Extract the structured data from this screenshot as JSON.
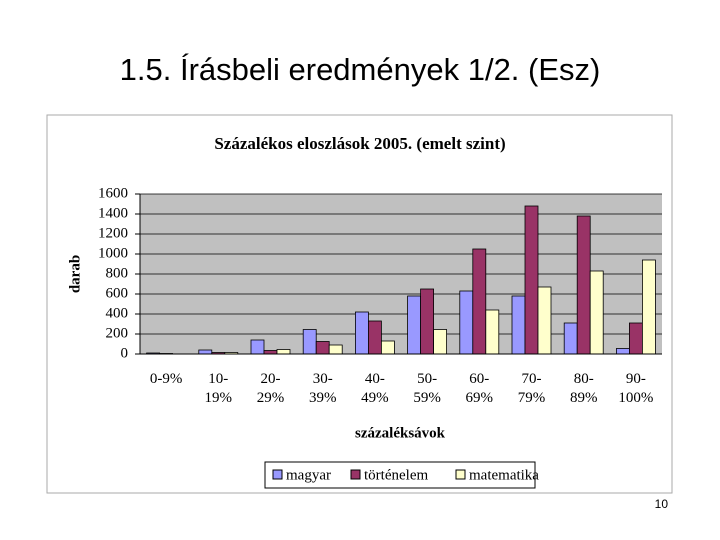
{
  "title": "1.5. Írásbeli eredmények 1/2. (Esz)",
  "page_number": "10",
  "chart_data": {
    "type": "bar",
    "title": "Százalékos eloszlások 2005. (emelt szint)",
    "x_label": "százaléksávok",
    "y_label": "darab",
    "categories": [
      "0-9%",
      "10-\n19%",
      "20-\n29%",
      "30-\n39%",
      "40-\n49%",
      "50-\n59%",
      "60-\n69%",
      "70-\n79%",
      "80-\n89%",
      "90-\n100%"
    ],
    "series": [
      {
        "name": "magyar",
        "color": "#9999ff",
        "values": [
          10,
          40,
          140,
          245,
          420,
          580,
          630,
          580,
          310,
          55
        ]
      },
      {
        "name": "történelem",
        "color": "#993366",
        "values": [
          5,
          15,
          35,
          125,
          330,
          650,
          1050,
          1480,
          1380,
          310
        ]
      },
      {
        "name": "matematika",
        "color": "#ffffcc",
        "values": [
          0,
          15,
          45,
          90,
          130,
          245,
          440,
          670,
          830,
          940
        ]
      }
    ],
    "ylim": [
      0,
      1600
    ],
    "yticks": [
      0,
      200,
      400,
      600,
      800,
      1000,
      1200,
      1400,
      1600
    ],
    "grid": true,
    "legend": "bottom"
  }
}
